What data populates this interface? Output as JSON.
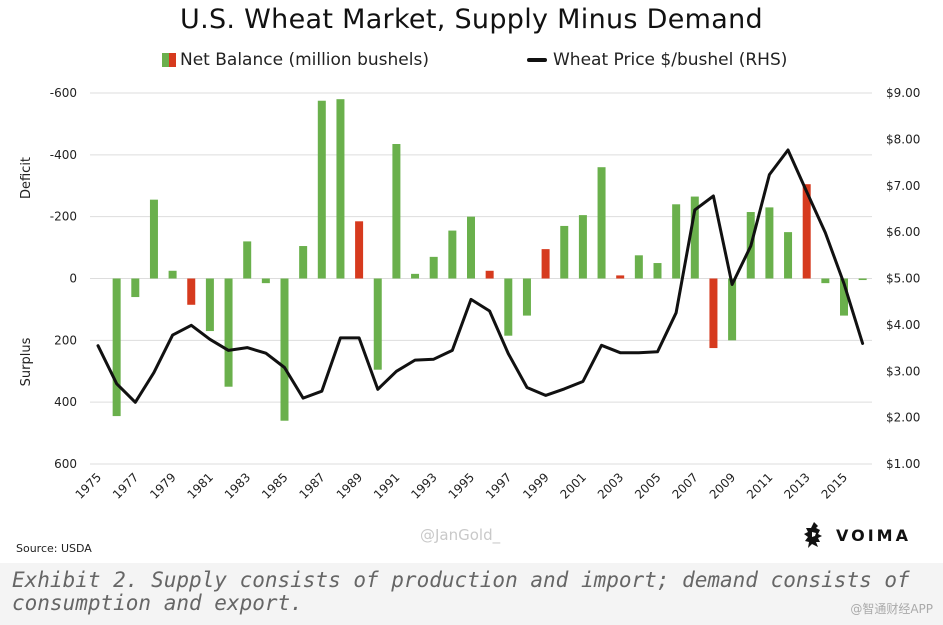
{
  "chart_data": {
    "type": "bar",
    "title": "U.S. Wheat Market, Supply Minus Demand",
    "legend": {
      "placement": "top",
      "net_label": "Net Balance (million bushels)",
      "price_label": "Wheat Price $/bushel (RHS)"
    },
    "left_axis": {
      "label_top": "Deficit",
      "label_bottom": "Surplus",
      "ticks": [
        -600,
        -400,
        -200,
        0,
        200,
        400,
        600
      ],
      "tick_labels": [
        "-600",
        "-400",
        "-200",
        "0",
        "200",
        "400",
        "600"
      ],
      "range": [
        -600,
        600
      ],
      "inverted": true
    },
    "right_axis": {
      "ticks": [
        9,
        8,
        7,
        6,
        5,
        4,
        3,
        2,
        1
      ],
      "tick_labels": [
        "$9.00",
        "$8.00",
        "$7.00",
        "$6.00",
        "$5.00",
        "$4.00",
        "$3.00",
        "$2.00",
        "$1.00"
      ],
      "range": [
        1,
        9
      ]
    },
    "x_tick_labels": [
      "1975",
      "1977",
      "1979",
      "1981",
      "1983",
      "1985",
      "1987",
      "1989",
      "1991",
      "1993",
      "1995",
      "1997",
      "1999",
      "2001",
      "2003",
      "2005",
      "2007",
      "2009",
      "2011",
      "2013",
      "2015"
    ],
    "grid": "horizontal",
    "colors": {
      "surplus": "#6ab04c",
      "deficit": "#d63a1e",
      "price_line": "#111111",
      "grid": "#dddddd"
    },
    "years": [
      1975,
      1976,
      1977,
      1978,
      1979,
      1980,
      1981,
      1982,
      1983,
      1984,
      1985,
      1986,
      1987,
      1988,
      1989,
      1990,
      1991,
      1992,
      1993,
      1994,
      1995,
      1996,
      1997,
      1998,
      1999,
      2000,
      2001,
      2002,
      2003,
      2004,
      2005,
      2006,
      2007,
      2008,
      2009,
      2010,
      2011,
      2012,
      2013,
      2014,
      2015,
      2016
    ],
    "net_balance": [
      0,
      445,
      60,
      -255,
      -25,
      85,
      170,
      350,
      -120,
      15,
      460,
      -105,
      -575,
      -580,
      -185,
      295,
      -435,
      -15,
      -70,
      -155,
      -200,
      -25,
      185,
      120,
      -95,
      -170,
      -205,
      -360,
      -10,
      -75,
      -50,
      -240,
      -265,
      225,
      200,
      -215,
      -230,
      -150,
      -305,
      15,
      120,
      5
    ],
    "net_color": [
      "g",
      "g",
      "g",
      "g",
      "g",
      "r",
      "g",
      "g",
      "g",
      "g",
      "g",
      "g",
      "g",
      "g",
      "r",
      "g",
      "g",
      "g",
      "g",
      "g",
      "g",
      "r",
      "g",
      "g",
      "r",
      "g",
      "g",
      "g",
      "r",
      "g",
      "g",
      "g",
      "g",
      "r",
      "g",
      "g",
      "g",
      "g",
      "r",
      "g",
      "g",
      "g"
    ],
    "price": [
      3.55,
      2.73,
      2.33,
      2.97,
      3.78,
      3.99,
      3.69,
      3.45,
      3.51,
      3.39,
      3.08,
      2.42,
      2.57,
      3.72,
      3.72,
      2.61,
      3.0,
      3.24,
      3.26,
      3.45,
      4.55,
      4.3,
      3.38,
      2.65,
      2.48,
      2.62,
      2.78,
      3.56,
      3.4,
      3.4,
      3.42,
      4.26,
      6.48,
      6.78,
      4.87,
      5.7,
      7.24,
      7.77,
      6.87,
      5.99,
      4.89,
      3.6
    ]
  },
  "source": "Source: USDA",
  "watermark_handle": "@JanGold_",
  "brand_name": "VOIMA",
  "caption": "Exhibit 2. Supply consists of production and import; demand consists of consumption and export.",
  "footer_watermark": "@智通财经APP"
}
